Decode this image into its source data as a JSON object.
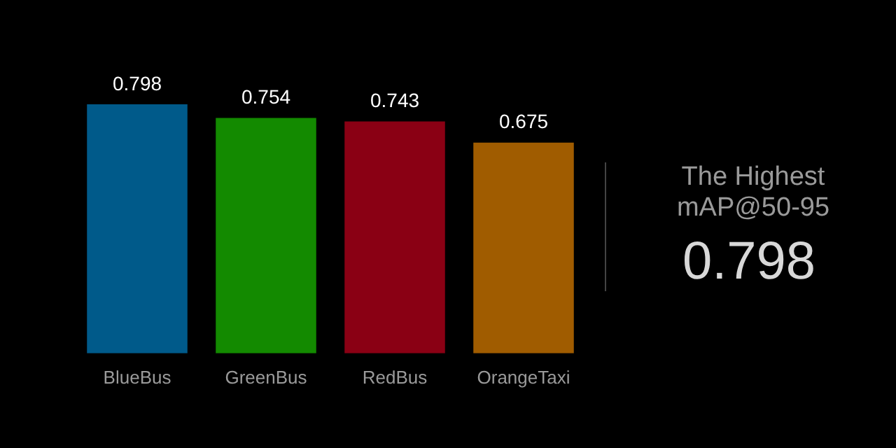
{
  "chart_data": {
    "type": "bar",
    "categories": [
      "BlueBus",
      "GreenBus",
      "RedBus",
      "OrangeTaxi"
    ],
    "values": [
      0.798,
      0.754,
      0.743,
      0.675
    ],
    "colors": [
      "#005a8a",
      "#138a00",
      "#8a0014",
      "#a05c00"
    ],
    "tick_labels": "x",
    "data_labels": true,
    "annotations": [
      "The Highest mAP@50-95",
      "0.798"
    ]
  }
}
